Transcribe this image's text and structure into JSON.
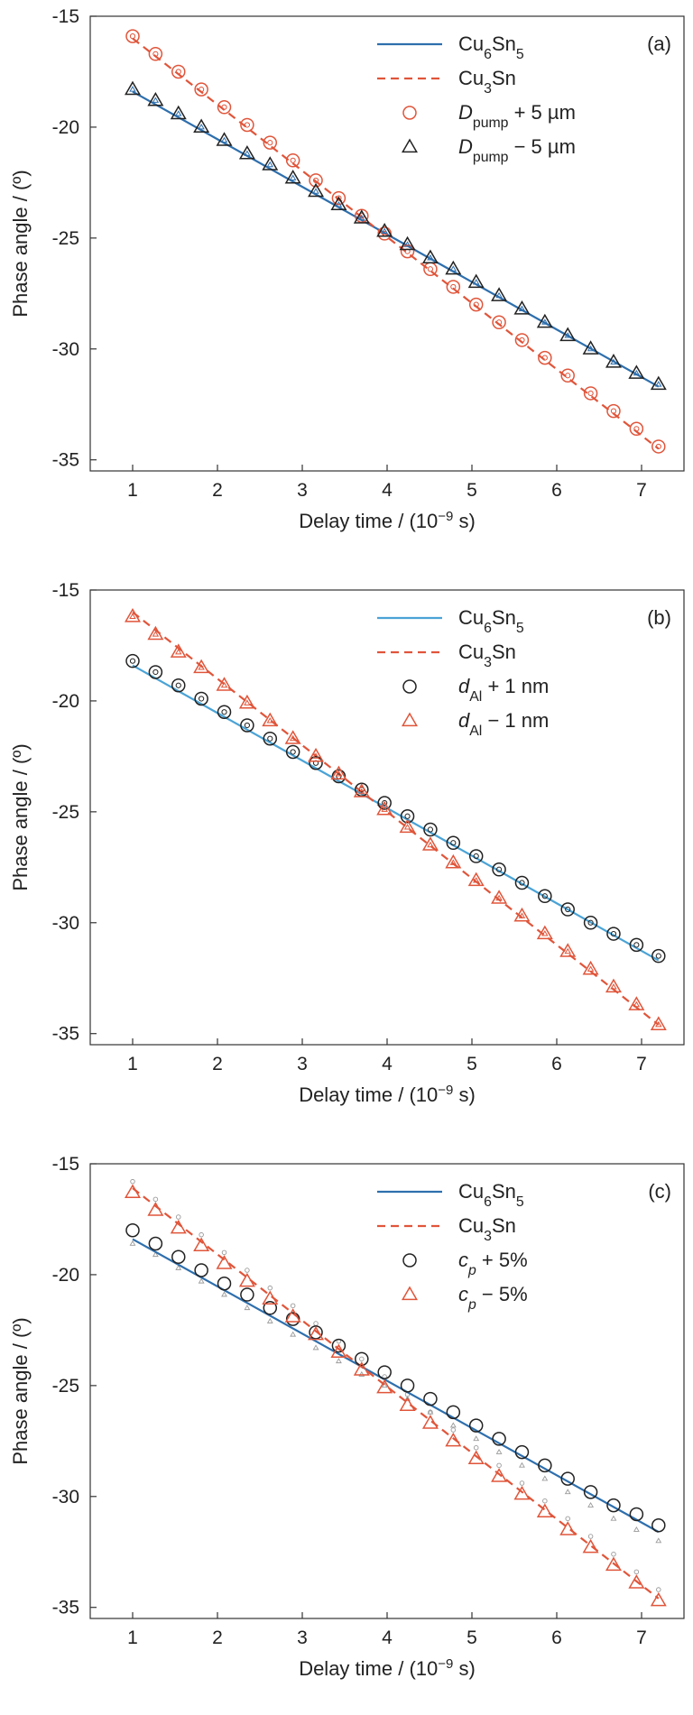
{
  "chart_data": [
    {
      "type": "line",
      "panel_label": "(a)",
      "xlabel": {
        "main": "Delay time / (10",
        "sup": "−9",
        "tail": " s)"
      },
      "ylabel": "Phase angle / (º)",
      "xlim": [
        0.5,
        7.5
      ],
      "ylim": [
        -35.5,
        -15
      ],
      "xticks": [
        1,
        2,
        3,
        4,
        5,
        6,
        7
      ],
      "yticks": [
        -15,
        -20,
        -25,
        -30,
        -35
      ],
      "legend_position": "top-right",
      "x": [
        1.0,
        1.27,
        1.54,
        1.81,
        2.08,
        2.35,
        2.62,
        2.89,
        3.16,
        3.43,
        3.7,
        3.97,
        4.24,
        4.51,
        4.78,
        5.05,
        5.32,
        5.59,
        5.86,
        6.13,
        6.4,
        6.67,
        6.94,
        7.2
      ],
      "series": [
        {
          "name": "Cu6Sn5",
          "legend": {
            "parts": [
              [
                "Cu",
                ""
              ],
              [
                "6",
                "sub"
              ],
              [
                "Sn",
                ""
              ],
              [
                "5",
                "sub"
              ]
            ]
          },
          "kind": "line",
          "style": "solid",
          "color": "#2e6fad",
          "x": [
            1.0,
            7.2
          ],
          "y": [
            -18.4,
            -31.7
          ]
        },
        {
          "name": "Cu3Sn",
          "legend": {
            "parts": [
              [
                "Cu",
                ""
              ],
              [
                "3",
                "sub"
              ],
              [
                "Sn",
                ""
              ]
            ]
          },
          "kind": "line",
          "style": "dashed",
          "color": "#e0553a",
          "x": [
            1.0,
            7.2
          ],
          "y": [
            -16.0,
            -34.5
          ]
        },
        {
          "name": "Dpump + 5 µm",
          "legend": {
            "parts": [
              [
                "D",
                "it"
              ],
              [
                "pump",
                "sub"
              ],
              [
                " + 5 µm",
                ""
              ]
            ]
          },
          "kind": "marker",
          "marker": "circle",
          "color": "#e0553a",
          "inner_marker": "circle",
          "y": [
            -15.9,
            -16.7,
            -17.5,
            -18.3,
            -19.1,
            -19.9,
            -20.7,
            -21.5,
            -22.4,
            -23.2,
            -24.0,
            -24.8,
            -25.6,
            -26.4,
            -27.2,
            -28.0,
            -28.8,
            -29.6,
            -30.4,
            -31.2,
            -32.0,
            -32.8,
            -33.6,
            -34.4
          ]
        },
        {
          "name": "Dpump − 5 µm",
          "legend": {
            "parts": [
              [
                "D",
                "it"
              ],
              [
                "pump",
                "sub"
              ],
              [
                " − 5 µm",
                ""
              ]
            ]
          },
          "kind": "marker",
          "marker": "triangle",
          "color": "#222222",
          "inner_marker": "triangle",
          "inner_color": "#2e6fad",
          "y": [
            -18.3,
            -18.8,
            -19.4,
            -20.0,
            -20.6,
            -21.2,
            -21.7,
            -22.3,
            -22.9,
            -23.5,
            -24.1,
            -24.7,
            -25.3,
            -25.9,
            -26.4,
            -27.0,
            -27.6,
            -28.2,
            -28.8,
            -29.4,
            -30.0,
            -30.6,
            -31.1,
            -31.6
          ]
        }
      ]
    },
    {
      "type": "line",
      "panel_label": "(b)",
      "xlabel": {
        "main": "Delay time / (10",
        "sup": "−9",
        "tail": " s)"
      },
      "ylabel": "Phase angle / (º)",
      "xlim": [
        0.5,
        7.5
      ],
      "ylim": [
        -35.5,
        -15
      ],
      "xticks": [
        1,
        2,
        3,
        4,
        5,
        6,
        7
      ],
      "yticks": [
        -15,
        -20,
        -25,
        -30,
        -35
      ],
      "legend_position": "top-right",
      "x": [
        1.0,
        1.27,
        1.54,
        1.81,
        2.08,
        2.35,
        2.62,
        2.89,
        3.16,
        3.43,
        3.7,
        3.97,
        4.24,
        4.51,
        4.78,
        5.05,
        5.32,
        5.59,
        5.86,
        6.13,
        6.4,
        6.67,
        6.94,
        7.2
      ],
      "series": [
        {
          "name": "Cu6Sn5",
          "legend": {
            "parts": [
              [
                "Cu",
                ""
              ],
              [
                "6",
                "sub"
              ],
              [
                "Sn",
                ""
              ],
              [
                "5",
                "sub"
              ]
            ]
          },
          "kind": "line",
          "style": "solid",
          "color": "#4aa3d6",
          "x": [
            1.0,
            7.2
          ],
          "y": [
            -18.4,
            -31.7
          ]
        },
        {
          "name": "Cu3Sn",
          "legend": {
            "parts": [
              [
                "Cu",
                ""
              ],
              [
                "3",
                "sub"
              ],
              [
                "Sn",
                ""
              ]
            ]
          },
          "kind": "line",
          "style": "dashed",
          "color": "#e0553a",
          "x": [
            1.0,
            7.2
          ],
          "y": [
            -16.0,
            -34.6
          ]
        },
        {
          "name": "dAl + 1 nm",
          "legend": {
            "parts": [
              [
                "d",
                "it"
              ],
              [
                "Al",
                "sub"
              ],
              [
                " + 1 nm",
                ""
              ]
            ]
          },
          "kind": "marker",
          "marker": "circle",
          "color": "#222222",
          "inner_marker": "circle",
          "y": [
            -18.2,
            -18.7,
            -19.3,
            -19.9,
            -20.5,
            -21.1,
            -21.7,
            -22.3,
            -22.8,
            -23.4,
            -24.0,
            -24.6,
            -25.2,
            -25.8,
            -26.4,
            -27.0,
            -27.6,
            -28.2,
            -28.8,
            -29.4,
            -30.0,
            -30.5,
            -31.0,
            -31.5
          ]
        },
        {
          "name": "dAl − 1 nm",
          "legend": {
            "parts": [
              [
                "d",
                "it"
              ],
              [
                "Al",
                "sub"
              ],
              [
                " − 1 nm",
                ""
              ]
            ]
          },
          "kind": "marker",
          "marker": "triangle",
          "color": "#e0553a",
          "inner_marker": "triangle",
          "y": [
            -16.2,
            -17.0,
            -17.8,
            -18.5,
            -19.3,
            -20.1,
            -20.9,
            -21.7,
            -22.5,
            -23.3,
            -24.1,
            -24.9,
            -25.7,
            -26.5,
            -27.3,
            -28.1,
            -28.9,
            -29.7,
            -30.5,
            -31.3,
            -32.1,
            -32.9,
            -33.7,
            -34.6
          ]
        }
      ]
    },
    {
      "type": "line",
      "panel_label": "(c)",
      "xlabel": {
        "main": "Delay time / (10",
        "sup": "−9",
        "tail": " s)"
      },
      "ylabel": "Phase angle / (º)",
      "xlim": [
        0.5,
        7.5
      ],
      "ylim": [
        -35.5,
        -15
      ],
      "xticks": [
        1,
        2,
        3,
        4,
        5,
        6,
        7
      ],
      "yticks": [
        -15,
        -20,
        -25,
        -30,
        -35
      ],
      "legend_position": "top-right",
      "x": [
        1.0,
        1.27,
        1.54,
        1.81,
        2.08,
        2.35,
        2.62,
        2.89,
        3.16,
        3.43,
        3.7,
        3.97,
        4.24,
        4.51,
        4.78,
        5.05,
        5.32,
        5.59,
        5.86,
        6.13,
        6.4,
        6.67,
        6.94,
        7.2
      ],
      "series": [
        {
          "name": "Cu6Sn5",
          "legend": {
            "parts": [
              [
                "Cu",
                ""
              ],
              [
                "6",
                "sub"
              ],
              [
                "Sn",
                ""
              ],
              [
                "5",
                "sub"
              ]
            ]
          },
          "kind": "line",
          "style": "solid",
          "color": "#2e6fad",
          "x": [
            1.0,
            7.2
          ],
          "y": [
            -18.4,
            -31.6
          ]
        },
        {
          "name": "Cu3Sn",
          "legend": {
            "parts": [
              [
                "Cu",
                ""
              ],
              [
                "3",
                "sub"
              ],
              [
                "Sn",
                ""
              ]
            ]
          },
          "kind": "line",
          "style": "dashed",
          "color": "#e0553a",
          "x": [
            1.0,
            7.2
          ],
          "y": [
            -16.1,
            -34.6
          ]
        },
        {
          "name": "cp + 5%",
          "legend": {
            "parts": [
              [
                "c",
                "it"
              ],
              [
                "p",
                "itsub"
              ],
              [
                " + 5%",
                ""
              ]
            ]
          },
          "kind": "marker",
          "marker": "circle",
          "color": "#222222",
          "scatter_ref": "circle",
          "y": [
            -18.0,
            -18.6,
            -19.2,
            -19.8,
            -20.4,
            -20.9,
            -21.5,
            -22.0,
            -22.6,
            -23.2,
            -23.8,
            -24.4,
            -25.0,
            -25.6,
            -26.2,
            -26.8,
            -27.4,
            -28.0,
            -28.6,
            -29.2,
            -29.8,
            -30.4,
            -30.8,
            -31.3
          ]
        },
        {
          "name": "cp − 5%",
          "legend": {
            "parts": [
              [
                "c",
                "it"
              ],
              [
                "p",
                "itsub"
              ],
              [
                " − 5%",
                ""
              ]
            ]
          },
          "kind": "marker",
          "marker": "triangle",
          "color": "#e0553a",
          "scatter_ref": "triangle",
          "y": [
            -16.3,
            -17.1,
            -17.9,
            -18.7,
            -19.5,
            -20.3,
            -21.1,
            -21.9,
            -22.7,
            -23.5,
            -24.3,
            -25.1,
            -25.9,
            -26.7,
            -27.5,
            -28.3,
            -29.1,
            -29.9,
            -30.7,
            -31.5,
            -32.3,
            -33.1,
            -33.9,
            -34.7
          ]
        }
      ],
      "reference_points": {
        "circle_y": [
          -15.8,
          -16.6,
          -17.4,
          -18.2,
          -19.0,
          -19.8,
          -20.6,
          -21.4,
          -22.2,
          -23.0,
          -23.8,
          -24.6,
          -25.4,
          -26.2,
          -27.0,
          -27.8,
          -28.6,
          -29.4,
          -30.2,
          -31.0,
          -31.8,
          -32.6,
          -33.4,
          -34.2
        ],
        "triangle_y": [
          -18.6,
          -19.1,
          -19.7,
          -20.3,
          -20.9,
          -21.5,
          -22.1,
          -22.7,
          -23.3,
          -23.9,
          -24.5,
          -25.0,
          -25.6,
          -26.2,
          -26.8,
          -27.4,
          -28.0,
          -28.6,
          -29.2,
          -29.8,
          -30.4,
          -31.0,
          -31.5,
          -32.0
        ]
      }
    }
  ]
}
